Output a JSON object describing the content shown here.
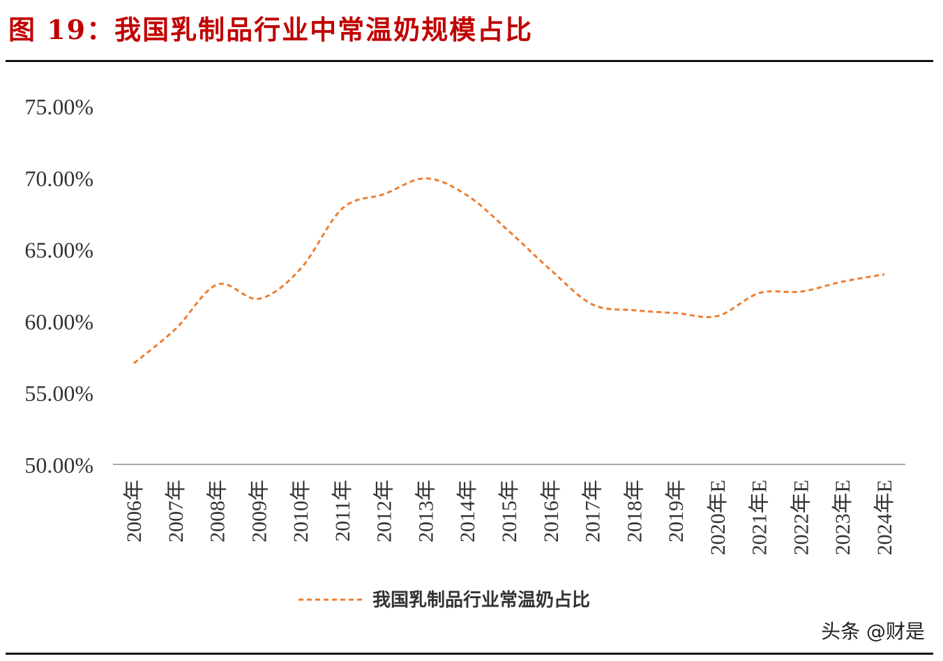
{
  "header": {
    "title": "图 19：我国乳制品行业中常温奶规模占比"
  },
  "watermark": "头条 @财是",
  "chart_data": {
    "type": "line",
    "title": "",
    "xlabel": "",
    "ylabel": "",
    "categories": [
      "2006年",
      "2007年",
      "2008年",
      "2009年",
      "2010年",
      "2011年",
      "2012年",
      "2013年",
      "2014年",
      "2015年",
      "2016年",
      "2017年",
      "2018年",
      "2019年",
      "2020年E",
      "2021年E",
      "2022年E",
      "2023年E",
      "2024年E"
    ],
    "series": [
      {
        "name": "我国乳制品行业常温奶占比",
        "values": [
          57.1,
          59.5,
          62.6,
          61.6,
          63.7,
          67.9,
          68.9,
          70.0,
          68.8,
          66.3,
          63.6,
          61.2,
          60.8,
          60.6,
          60.4,
          62.0,
          62.1,
          62.8,
          63.3
        ],
        "color": "#ed7d31",
        "style": "dashed",
        "smooth": true
      }
    ],
    "ylim": [
      50,
      75
    ],
    "yticks": [
      "50.00%",
      "55.00%",
      "60.00%",
      "65.00%",
      "70.00%",
      "75.00%"
    ],
    "grid": false,
    "legend": "bottom"
  }
}
